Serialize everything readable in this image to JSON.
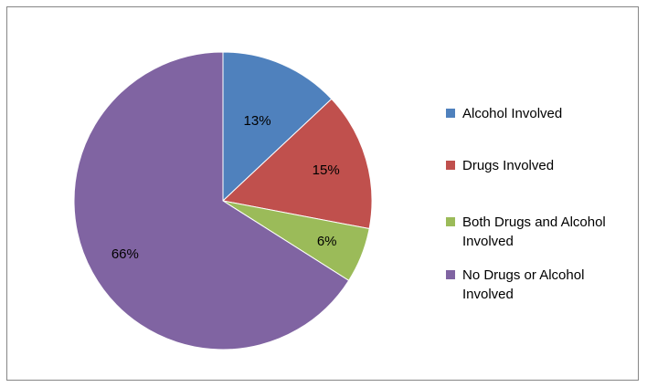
{
  "chart_data": {
    "type": "pie",
    "title": "",
    "legend_position": "right",
    "categories": [
      "Alcohol Involved",
      "Drugs Involved",
      "Both Drugs and Alcohol Involved",
      "No Drugs or Alcohol Involved"
    ],
    "values": [
      13,
      15,
      6,
      66
    ],
    "data_labels": [
      "13%",
      "15%",
      "6%",
      "66%"
    ],
    "colors": [
      "#4f81bd",
      "#c0504d",
      "#9bbb59",
      "#8064a2"
    ],
    "legend": [
      {
        "lines": [
          "Alcohol Involved"
        ],
        "color": "#4f81bd"
      },
      {
        "lines": [
          "Drugs Involved"
        ],
        "color": "#c0504d"
      },
      {
        "lines": [
          "Both Drugs and  Alcohol",
          "Involved"
        ],
        "color": "#9bbb59"
      },
      {
        "lines": [
          "No Drugs or Alcohol",
          "Involved"
        ],
        "color": "#8064a2"
      }
    ]
  }
}
